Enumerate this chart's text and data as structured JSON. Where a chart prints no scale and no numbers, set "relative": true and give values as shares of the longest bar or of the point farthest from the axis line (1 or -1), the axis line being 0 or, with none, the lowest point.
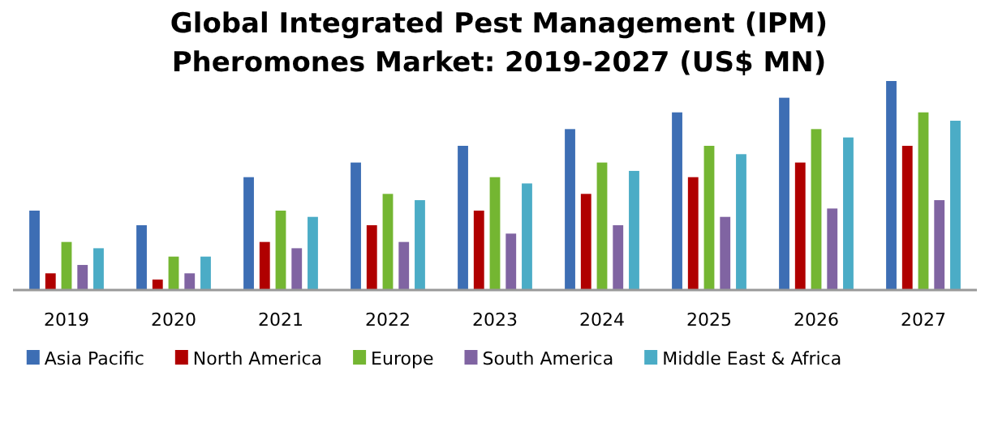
{
  "chart_data": {
    "type": "bar",
    "title": "Global Integrated Pest Management (IPM) Pheromones Market: 2019-2027 (US$ MN)",
    "relative": true,
    "legend": "bottom",
    "categories": [
      "2019",
      "2020",
      "2021",
      "2022",
      "2023",
      "2024",
      "2025",
      "2026",
      "2027"
    ],
    "series": [
      {
        "name": "Asia Pacific",
        "color": "#3d6eb4",
        "values": [
          0.38,
          0.31,
          0.54,
          0.61,
          0.69,
          0.77,
          0.85,
          0.92,
          1
        ]
      },
      {
        "name": "North America",
        "color": "#b00000",
        "values": [
          0.08,
          0.05,
          0.23,
          0.31,
          0.38,
          0.46,
          0.54,
          0.61,
          0.69
        ]
      },
      {
        "name": "Europe",
        "color": "#74b632",
        "values": [
          0.23,
          0.16,
          0.38,
          0.46,
          0.54,
          0.61,
          0.69,
          0.77,
          0.85
        ]
      },
      {
        "name": "South America",
        "color": "#8064a2",
        "values": [
          0.12,
          0.08,
          0.2,
          0.23,
          0.27,
          0.31,
          0.35,
          0.39,
          0.43
        ]
      },
      {
        "name": "Middle East & Africa",
        "color": "#4bacc6",
        "values": [
          0.2,
          0.16,
          0.35,
          0.43,
          0.51,
          0.57,
          0.65,
          0.73,
          0.81
        ]
      }
    ]
  }
}
